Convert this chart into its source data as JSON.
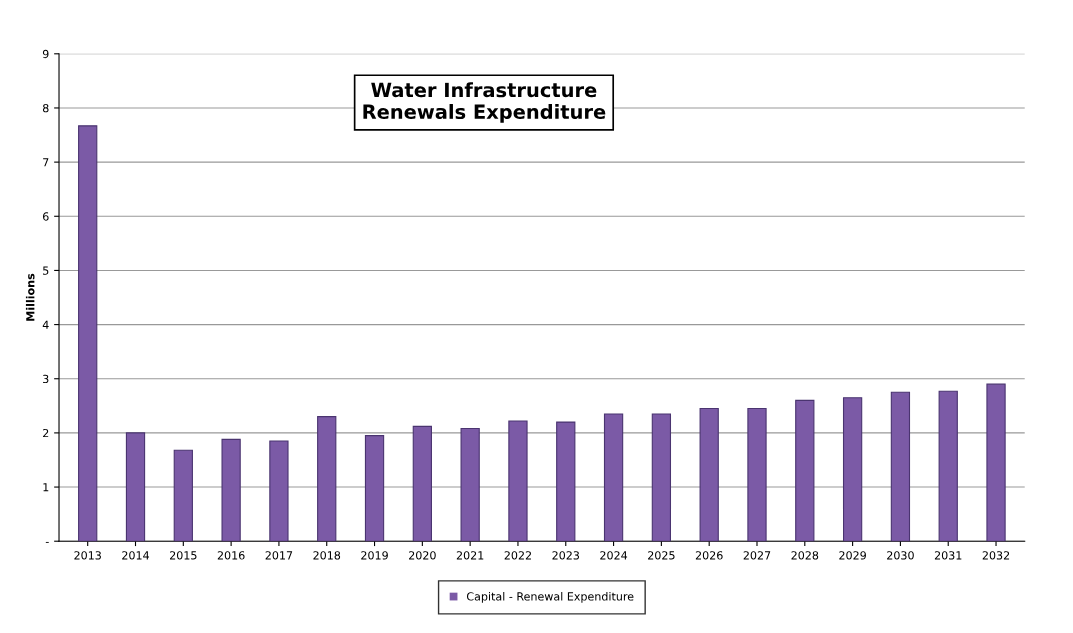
{
  "chart_data": {
    "type": "bar",
    "title": "Water Infrastructure\nRenewals Expenditure",
    "ylabel": "Millions",
    "categories": [
      "2013",
      "2014",
      "2015",
      "2016",
      "2017",
      "2018",
      "2019",
      "2020",
      "2021",
      "2022",
      "2023",
      "2024",
      "2025",
      "2026",
      "2027",
      "2028",
      "2029",
      "2030",
      "2031",
      "2032"
    ],
    "series": [
      {
        "name": "Capital - Renewal Expenditure",
        "color": "#7b5aa6",
        "values": [
          7.67,
          2.0,
          1.68,
          1.88,
          1.85,
          2.3,
          1.95,
          2.12,
          2.08,
          2.22,
          2.2,
          2.35,
          2.35,
          2.45,
          2.45,
          2.6,
          2.65,
          2.75,
          2.77,
          2.9
        ]
      }
    ],
    "ylim": [
      0,
      9
    ],
    "yticks": [
      {
        "value": 0,
        "label": "-"
      },
      1,
      2,
      3,
      4,
      5,
      6,
      7,
      8,
      9
    ],
    "grid": "y",
    "legend": "bottom"
  }
}
